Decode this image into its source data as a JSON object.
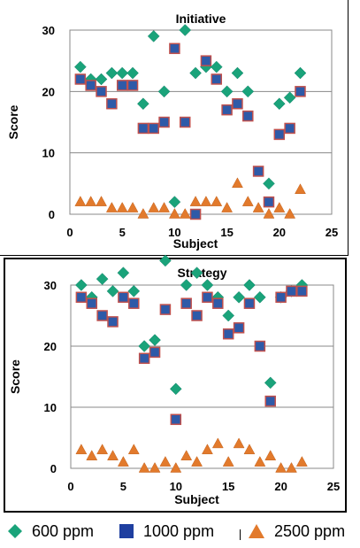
{
  "chart_data": [
    {
      "type": "scatter",
      "title": "Initiative",
      "xlabel": "Subject",
      "ylabel": "Score",
      "xlim": [
        0,
        25
      ],
      "ylim": [
        0,
        30
      ],
      "xticks": [
        "0",
        "5",
        "10",
        "15",
        "20",
        "25"
      ],
      "yticks": [
        "0",
        "10",
        "20",
        "30"
      ],
      "grid": "horizontal",
      "series": [
        {
          "name": "600 ppm",
          "color": "#1aa37a",
          "marker": "diamond",
          "points": [
            [
              1,
              24
            ],
            [
              2,
              22
            ],
            [
              3,
              22
            ],
            [
              4,
              23
            ],
            [
              5,
              23
            ],
            [
              6,
              23
            ],
            [
              7,
              18
            ],
            [
              8,
              29
            ],
            [
              9,
              20
            ],
            [
              10,
              2
            ],
            [
              11,
              30
            ],
            [
              12,
              23
            ],
            [
              13,
              24
            ],
            [
              14,
              24
            ],
            [
              15,
              20
            ],
            [
              16,
              23
            ],
            [
              17,
              20
            ],
            [
              19,
              5
            ],
            [
              20,
              18
            ],
            [
              21,
              19
            ],
            [
              22,
              23
            ]
          ]
        },
        {
          "name": "1000 ppm",
          "color": "#2e5aa8",
          "marker": "square",
          "points": [
            [
              1,
              22
            ],
            [
              2,
              21
            ],
            [
              3,
              20
            ],
            [
              4,
              18
            ],
            [
              5,
              21
            ],
            [
              6,
              21
            ],
            [
              7,
              14
            ],
            [
              8,
              14
            ],
            [
              9,
              15
            ],
            [
              10,
              27
            ],
            [
              11,
              15
            ],
            [
              12,
              0
            ],
            [
              13,
              25
            ],
            [
              14,
              22
            ],
            [
              15,
              17
            ],
            [
              16,
              18
            ],
            [
              17,
              16
            ],
            [
              18,
              7
            ],
            [
              19,
              2
            ],
            [
              20,
              13
            ],
            [
              21,
              14
            ],
            [
              22,
              20
            ]
          ]
        },
        {
          "name": "2500 ppm",
          "color": "#e27a2c",
          "marker": "triangle",
          "points": [
            [
              1,
              2
            ],
            [
              2,
              2
            ],
            [
              3,
              2
            ],
            [
              4,
              1
            ],
            [
              5,
              1
            ],
            [
              6,
              1
            ],
            [
              7,
              0
            ],
            [
              8,
              1
            ],
            [
              9,
              1
            ],
            [
              10,
              0
            ],
            [
              11,
              0
            ],
            [
              12,
              2
            ],
            [
              13,
              2
            ],
            [
              14,
              2
            ],
            [
              15,
              1
            ],
            [
              16,
              5
            ],
            [
              17,
              2
            ],
            [
              18,
              1
            ],
            [
              19,
              0
            ],
            [
              20,
              1
            ],
            [
              21,
              0
            ],
            [
              22,
              4
            ]
          ]
        }
      ]
    },
    {
      "type": "scatter",
      "title": "Strategy",
      "xlabel": "Subject",
      "ylabel": "Score",
      "xlim": [
        0,
        25
      ],
      "ylim": [
        0,
        30
      ],
      "xticks": [
        "0",
        "5",
        "10",
        "15",
        "20",
        "25"
      ],
      "yticks": [
        "0",
        "10",
        "20",
        "30"
      ],
      "grid": "horizontal",
      "series": [
        {
          "name": "600 ppm",
          "color": "#1aa37a",
          "marker": "diamond",
          "points": [
            [
              1,
              30
            ],
            [
              2,
              28
            ],
            [
              3,
              31
            ],
            [
              4,
              29
            ],
            [
              5,
              32
            ],
            [
              6,
              29
            ],
            [
              7,
              20
            ],
            [
              8,
              21
            ],
            [
              9,
              34
            ],
            [
              10,
              13
            ],
            [
              11,
              30
            ],
            [
              12,
              32
            ],
            [
              13,
              30
            ],
            [
              14,
              28
            ],
            [
              15,
              25
            ],
            [
              16,
              28
            ],
            [
              17,
              30
            ],
            [
              18,
              28
            ],
            [
              19,
              14
            ],
            [
              20,
              28
            ],
            [
              21,
              29
            ],
            [
              22,
              30
            ]
          ]
        },
        {
          "name": "1000 ppm",
          "color": "#2e5aa8",
          "marker": "square",
          "points": [
            [
              1,
              28
            ],
            [
              2,
              27
            ],
            [
              3,
              25
            ],
            [
              4,
              24
            ],
            [
              5,
              28
            ],
            [
              6,
              27
            ],
            [
              7,
              18
            ],
            [
              8,
              19
            ],
            [
              9,
              26
            ],
            [
              10,
              8
            ],
            [
              11,
              27
            ],
            [
              12,
              25
            ],
            [
              13,
              28
            ],
            [
              14,
              27
            ],
            [
              15,
              22
            ],
            [
              16,
              23
            ],
            [
              17,
              27
            ],
            [
              18,
              20
            ],
            [
              19,
              11
            ],
            [
              20,
              28
            ],
            [
              21,
              29
            ],
            [
              22,
              29
            ]
          ]
        },
        {
          "name": "2500 ppm",
          "color": "#e27a2c",
          "marker": "triangle",
          "points": [
            [
              1,
              3
            ],
            [
              2,
              2
            ],
            [
              3,
              3
            ],
            [
              4,
              2
            ],
            [
              5,
              1
            ],
            [
              6,
              3
            ],
            [
              7,
              0
            ],
            [
              8,
              0
            ],
            [
              9,
              1
            ],
            [
              10,
              0
            ],
            [
              11,
              2
            ],
            [
              12,
              1
            ],
            [
              13,
              3
            ],
            [
              14,
              4
            ],
            [
              15,
              1
            ],
            [
              16,
              4
            ],
            [
              17,
              3
            ],
            [
              18,
              1
            ],
            [
              19,
              2
            ],
            [
              20,
              0
            ],
            [
              21,
              0
            ],
            [
              22,
              1
            ]
          ]
        }
      ]
    }
  ],
  "legend": {
    "items": [
      {
        "label": "600 ppm",
        "marker": "diamond",
        "color": "#1aa37a"
      },
      {
        "label": "1000 ppm",
        "marker": "square",
        "color": "#2e5aa8"
      },
      {
        "label": "2500 ppm",
        "marker": "triangle",
        "color": "#e27a2c"
      }
    ]
  }
}
